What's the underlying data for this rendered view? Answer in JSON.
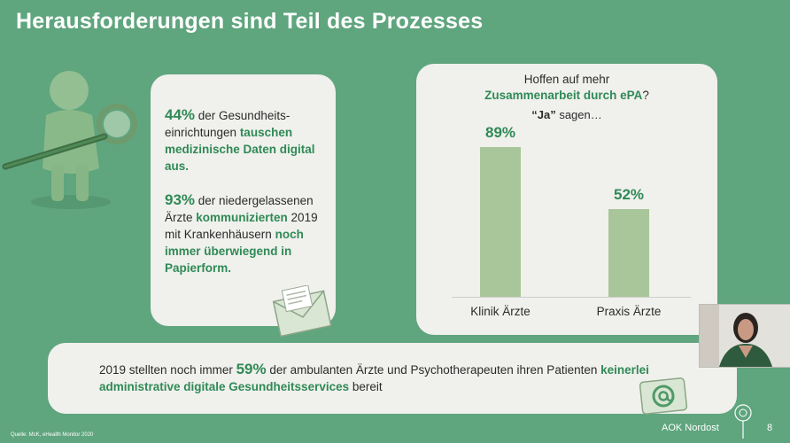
{
  "slide": {
    "title": "Herausforderungen sind Teil des Prozesses",
    "source": "Quelle: McK, eHealth Monitor 2020",
    "brand": "AOK Nordost",
    "page_number": "8"
  },
  "left_card": {
    "stat1_value": "44%",
    "stat1_text_a": " der Gesundheits-einrichtungen ",
    "stat1_highlight": "tauschen medizinische Daten digital aus.",
    "stat2_value": "93%",
    "stat2_text_a": " der niedergelassenen Ärzte ",
    "stat2_highlight_a": "kommunizierten",
    "stat2_text_b": " 2019 mit Krankenhäusern ",
    "stat2_highlight_b": "noch immer überwiegend in Papierform."
  },
  "right_card": {
    "question_line1": "Hoffen auf mehr",
    "question_highlight": "Zusammenarbeit durch ePA",
    "question_mark": "?",
    "answer_bold": "“Ja”",
    "answer_text": " sagen…"
  },
  "chart_data": {
    "type": "bar",
    "categories": [
      "Klinik Ärzte",
      "Praxis Ärzte"
    ],
    "values": [
      89,
      52
    ],
    "value_labels": [
      "89%",
      "52%"
    ],
    "ylim": [
      0,
      100
    ],
    "bar_color": "#a8c69a",
    "label_color": "#2f8a55"
  },
  "bottom_card": {
    "text_a": "2019 stellten noch immer ",
    "value": "59%",
    "text_b": " der ambulanten Ärzte und Psychotherapeuten ihren Patienten ",
    "highlight": "keinerlei administrative digitale Gesundheitsservices",
    "text_c": " bereit"
  },
  "icons": {
    "figure": "magnifier-figure-icon",
    "envelope": "envelope-icon",
    "at": "at-sign-icon",
    "logo": "aok-tree-logo-icon"
  },
  "colors": {
    "background": "#5fa57e",
    "accent": "#2f8a55",
    "card": "#f0f0ed"
  }
}
